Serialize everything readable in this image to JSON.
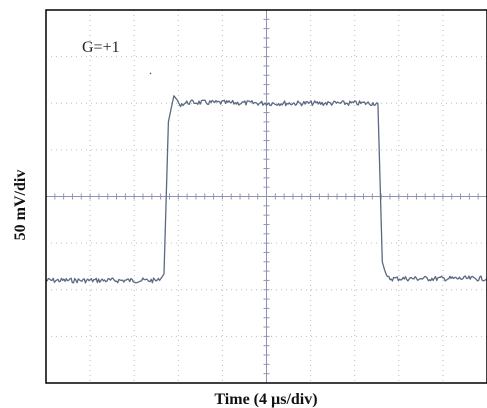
{
  "chart_data": {
    "type": "line",
    "xlabel": "Time (4 µs/div)",
    "ylabel": "50 mV/div",
    "annotations": [
      {
        "text": "G=+1"
      }
    ],
    "grid": true,
    "x_divisions": 10,
    "y_divisions": 8,
    "xlim": [
      0,
      40
    ],
    "ylim": [
      -200,
      200
    ],
    "x_unit": "µs",
    "y_unit": "mV",
    "series": [
      {
        "color": "#5a6a80",
        "x": [
          0,
          10.3,
          10.7,
          11.1,
          11.6,
          12.2,
          13,
          20,
          27,
          30.1,
          30.5,
          30.9,
          31.2,
          35,
          40
        ],
        "y": [
          -90,
          -90,
          -83,
          80,
          108,
          99,
          101,
          100,
          100,
          100,
          -70,
          -87,
          -88,
          -88,
          -88
        ]
      }
    ]
  }
}
